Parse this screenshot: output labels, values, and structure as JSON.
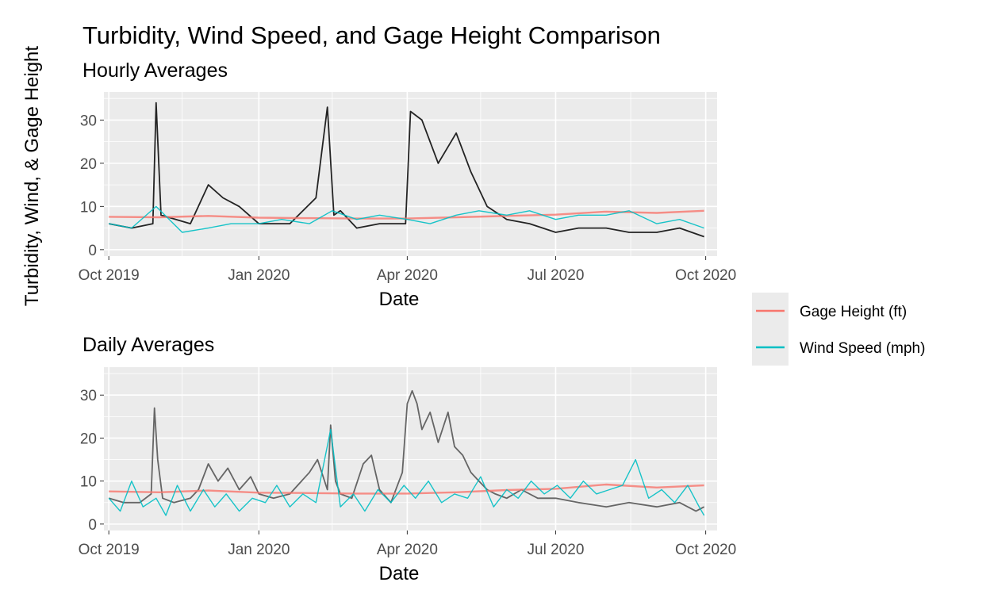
{
  "title": "Turbidity, Wind Speed, and Gage Height Comparison",
  "colors": {
    "panel_bg": "#EBEBEB",
    "grid": "#FFFFFF",
    "turbidity": "#000000",
    "gage_height": "#F8766D",
    "wind_speed": "#00BFC4",
    "tick_text": "#4D4D4D"
  },
  "legend": {
    "placement": "right",
    "items": [
      {
        "label": "Gage Height (ft)",
        "color": "#F8766D"
      },
      {
        "label": "Wind Speed (mph)",
        "color": "#00BFC4"
      }
    ]
  },
  "chart_data": [
    {
      "type": "line",
      "subtitle": "Hourly Averages",
      "xlabel": "Date",
      "ylabel": "Turbidity, Wind, & Gage Height",
      "x_ticks": [
        "Oct 2019",
        "Jan 2020",
        "Apr 2020",
        "Jul 2020",
        "Oct 2020"
      ],
      "y_ticks": [
        "0",
        "10",
        "20",
        "30"
      ],
      "xlim": [
        "2019-09-28",
        "2020-10-08"
      ],
      "ylim": [
        -1.5,
        36.5
      ],
      "grid": true,
      "series": [
        {
          "key": "turbidity",
          "color": "#000000",
          "x": [
            "2019-10-01",
            "2019-10-15",
            "2019-10-28",
            "2019-10-30",
            "2019-11-02",
            "2019-11-20",
            "2019-12-01",
            "2019-12-10",
            "2019-12-20",
            "2020-01-01",
            "2020-01-20",
            "2020-02-05",
            "2020-02-12",
            "2020-02-16",
            "2020-02-20",
            "2020-03-01",
            "2020-03-15",
            "2020-03-31",
            "2020-04-03",
            "2020-04-10",
            "2020-04-20",
            "2020-05-01",
            "2020-05-10",
            "2020-05-20",
            "2020-06-01",
            "2020-06-15",
            "2020-07-01",
            "2020-07-15",
            "2020-08-01",
            "2020-08-15",
            "2020-09-01",
            "2020-09-15",
            "2020-09-30"
          ],
          "y": [
            6,
            5,
            6,
            34,
            8,
            6,
            15,
            12,
            10,
            6,
            6,
            12,
            33,
            8,
            9,
            5,
            6,
            6,
            32,
            30,
            20,
            27,
            18,
            10,
            7,
            6,
            4,
            5,
            5,
            4,
            4,
            5,
            3
          ]
        },
        {
          "key": "gage_height",
          "color": "#F8766D",
          "x": [
            "2019-10-01",
            "2019-11-01",
            "2019-12-01",
            "2020-01-01",
            "2020-02-01",
            "2020-03-01",
            "2020-04-01",
            "2020-05-01",
            "2020-06-01",
            "2020-07-01",
            "2020-08-01",
            "2020-09-01",
            "2020-09-30"
          ],
          "y": [
            7.6,
            7.5,
            7.8,
            7.4,
            7.3,
            7.2,
            7.2,
            7.5,
            7.8,
            8.1,
            8.8,
            8.5,
            9.0
          ]
        },
        {
          "key": "wind_speed",
          "color": "#00BFC4",
          "x": [
            "2019-10-01",
            "2019-10-15",
            "2019-10-30",
            "2019-11-15",
            "2019-12-01",
            "2019-12-15",
            "2020-01-01",
            "2020-01-15",
            "2020-02-01",
            "2020-02-15",
            "2020-03-01",
            "2020-03-15",
            "2020-04-01",
            "2020-04-15",
            "2020-05-01",
            "2020-05-15",
            "2020-06-01",
            "2020-06-15",
            "2020-07-01",
            "2020-07-15",
            "2020-08-01",
            "2020-08-15",
            "2020-09-01",
            "2020-09-15",
            "2020-09-30"
          ],
          "y": [
            6,
            5,
            10,
            4,
            5,
            6,
            6,
            7,
            6,
            9,
            7,
            8,
            7,
            6,
            8,
            9,
            8,
            9,
            7,
            8,
            8,
            9,
            6,
            7,
            5
          ]
        }
      ]
    },
    {
      "type": "line",
      "subtitle": "Daily Averages",
      "xlabel": "Date",
      "x_ticks": [
        "Oct 2019",
        "Jan 2020",
        "Apr 2020",
        "Jul 2020",
        "Oct 2020"
      ],
      "y_ticks": [
        "0",
        "10",
        "20",
        "30"
      ],
      "xlim": [
        "2019-09-28",
        "2020-10-08"
      ],
      "ylim": [
        -1.5,
        36.5
      ],
      "grid": true,
      "series": [
        {
          "key": "turbidity",
          "color": "#4D4D4D",
          "x": [
            "2019-10-01",
            "2019-10-10",
            "2019-10-20",
            "2019-10-27",
            "2019-10-29",
            "2019-10-31",
            "2019-11-03",
            "2019-11-10",
            "2019-11-20",
            "2019-11-25",
            "2019-12-01",
            "2019-12-07",
            "2019-12-13",
            "2019-12-20",
            "2019-12-27",
            "2020-01-01",
            "2020-01-10",
            "2020-01-20",
            "2020-02-01",
            "2020-02-06",
            "2020-02-12",
            "2020-02-14",
            "2020-02-17",
            "2020-02-20",
            "2020-02-27",
            "2020-03-05",
            "2020-03-10",
            "2020-03-15",
            "2020-03-22",
            "2020-03-29",
            "2020-04-01",
            "2020-04-04",
            "2020-04-07",
            "2020-04-10",
            "2020-04-15",
            "2020-04-20",
            "2020-04-26",
            "2020-04-30",
            "2020-05-05",
            "2020-05-10",
            "2020-05-15",
            "2020-05-20",
            "2020-05-25",
            "2020-06-01",
            "2020-06-10",
            "2020-06-20",
            "2020-07-01",
            "2020-07-15",
            "2020-08-01",
            "2020-08-15",
            "2020-09-01",
            "2020-09-15",
            "2020-09-25",
            "2020-09-30"
          ],
          "y": [
            6,
            5,
            5,
            7,
            27,
            15,
            6,
            5,
            6,
            8,
            14,
            10,
            13,
            8,
            11,
            7,
            6,
            7,
            12,
            15,
            8,
            23,
            10,
            7,
            6,
            14,
            16,
            8,
            5,
            12,
            28,
            31,
            28,
            22,
            26,
            19,
            26,
            18,
            16,
            12,
            10,
            8,
            7,
            6,
            8,
            6,
            6,
            5,
            4,
            5,
            4,
            5,
            3,
            4
          ]
        },
        {
          "key": "gage_height",
          "color": "#F8766D",
          "x": [
            "2019-10-01",
            "2019-11-01",
            "2019-12-01",
            "2020-01-01",
            "2020-02-01",
            "2020-03-01",
            "2020-04-01",
            "2020-05-01",
            "2020-06-01",
            "2020-07-01",
            "2020-08-01",
            "2020-09-01",
            "2020-09-30"
          ],
          "y": [
            7.6,
            7.4,
            7.8,
            7.3,
            7.2,
            7.1,
            7.1,
            7.4,
            7.9,
            8.2,
            9.2,
            8.5,
            9.0
          ]
        },
        {
          "key": "wind_speed",
          "color": "#00BFC4",
          "x": [
            "2019-10-01",
            "2019-10-08",
            "2019-10-15",
            "2019-10-22",
            "2019-10-30",
            "2019-11-05",
            "2019-11-12",
            "2019-11-20",
            "2019-11-28",
            "2019-12-05",
            "2019-12-12",
            "2019-12-20",
            "2019-12-28",
            "2020-01-05",
            "2020-01-12",
            "2020-01-20",
            "2020-01-28",
            "2020-02-05",
            "2020-02-14",
            "2020-02-20",
            "2020-02-28",
            "2020-03-06",
            "2020-03-14",
            "2020-03-22",
            "2020-03-30",
            "2020-04-06",
            "2020-04-14",
            "2020-04-22",
            "2020-04-30",
            "2020-05-08",
            "2020-05-16",
            "2020-05-24",
            "2020-06-01",
            "2020-06-08",
            "2020-06-16",
            "2020-06-24",
            "2020-07-02",
            "2020-07-10",
            "2020-07-18",
            "2020-07-26",
            "2020-08-03",
            "2020-08-11",
            "2020-08-19",
            "2020-08-27",
            "2020-09-04",
            "2020-09-12",
            "2020-09-20",
            "2020-09-27",
            "2020-09-30"
          ],
          "y": [
            6,
            3,
            10,
            4,
            6,
            2,
            9,
            3,
            8,
            4,
            7,
            3,
            6,
            5,
            9,
            4,
            7,
            5,
            22,
            4,
            7,
            3,
            8,
            5,
            9,
            6,
            10,
            5,
            7,
            6,
            11,
            4,
            8,
            6,
            10,
            7,
            9,
            6,
            10,
            7,
            8,
            9,
            15,
            6,
            8,
            5,
            9,
            4,
            2
          ]
        }
      ]
    }
  ]
}
